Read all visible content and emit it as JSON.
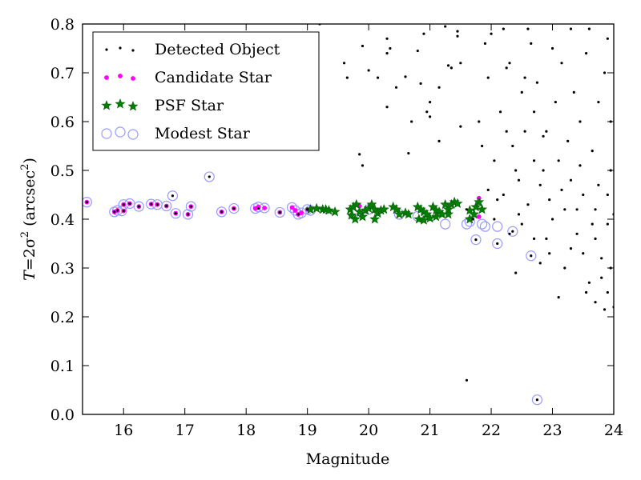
{
  "chart_data": {
    "type": "scatter",
    "title": "",
    "xlabel": "Magnitude",
    "ylabel_main": "T",
    "ylabel_eq": "=2σ",
    "ylabel_sup": "2",
    "ylabel_unit": "(arcsec",
    "ylabel_unit_sup": "2",
    "ylabel_close": ")",
    "xlim": [
      15.33,
      24
    ],
    "ylim": [
      0.0,
      0.8
    ],
    "xticks": [
      16,
      17,
      18,
      19,
      20,
      21,
      22,
      23,
      24
    ],
    "xtick_labels": [
      "16",
      "17",
      "18",
      "19",
      "20",
      "21",
      "22",
      "23",
      "24"
    ],
    "yticks": [
      0.0,
      0.1,
      0.2,
      0.3,
      0.4,
      0.5,
      0.6,
      0.7,
      0.8
    ],
    "ytick_labels": [
      "0.0",
      "0.1",
      "0.2",
      "0.3",
      "0.4",
      "0.5",
      "0.6",
      "0.7",
      "0.8"
    ],
    "grid": false,
    "legend_position": "top-left",
    "legend": [
      {
        "label": "Detected Object",
        "marker": "dot",
        "color": "#000000"
      },
      {
        "label": "Candidate Star",
        "marker": "small-circle",
        "color": "#ff00ff"
      },
      {
        "label": "PSF Star",
        "marker": "star",
        "color": "#008000"
      },
      {
        "label": "Modest Star",
        "marker": "open-circle",
        "color": "#9999ff"
      }
    ],
    "series": [
      {
        "name": "Modest Star",
        "color": "#9999ff",
        "points": [
          [
            15.4,
            0.435
          ],
          [
            15.85,
            0.415
          ],
          [
            15.9,
            0.418
          ],
          [
            15.97,
            0.417
          ],
          [
            16.0,
            0.43
          ],
          [
            16.1,
            0.432
          ],
          [
            16.25,
            0.426
          ],
          [
            16.45,
            0.431
          ],
          [
            16.55,
            0.43
          ],
          [
            16.7,
            0.427
          ],
          [
            16.8,
            0.448
          ],
          [
            16.85,
            0.412
          ],
          [
            17.05,
            0.41
          ],
          [
            17.1,
            0.426
          ],
          [
            17.4,
            0.487
          ],
          [
            17.6,
            0.415
          ],
          [
            17.8,
            0.422
          ],
          [
            18.15,
            0.422
          ],
          [
            18.2,
            0.425
          ],
          [
            18.3,
            0.423
          ],
          [
            18.55,
            0.414
          ],
          [
            18.75,
            0.424
          ],
          [
            18.8,
            0.418
          ],
          [
            18.85,
            0.41
          ],
          [
            18.9,
            0.413
          ],
          [
            19.0,
            0.42
          ],
          [
            19.05,
            0.418
          ],
          [
            19.75,
            0.41
          ],
          [
            20.0,
            0.42
          ],
          [
            20.5,
            0.41
          ],
          [
            20.8,
            0.406
          ],
          [
            21.25,
            0.39
          ],
          [
            21.6,
            0.39
          ],
          [
            21.65,
            0.395
          ],
          [
            21.75,
            0.358
          ],
          [
            21.85,
            0.39
          ],
          [
            21.9,
            0.385
          ],
          [
            22.1,
            0.385
          ],
          [
            22.1,
            0.35
          ],
          [
            22.35,
            0.375
          ],
          [
            22.65,
            0.325
          ],
          [
            22.75,
            0.03
          ]
        ]
      },
      {
        "name": "Candidate Star",
        "color": "#ff00ff",
        "points": [
          [
            15.4,
            0.435
          ],
          [
            15.85,
            0.415
          ],
          [
            15.9,
            0.418
          ],
          [
            16.0,
            0.417
          ],
          [
            16.0,
            0.43
          ],
          [
            16.1,
            0.432
          ],
          [
            16.25,
            0.426
          ],
          [
            16.45,
            0.431
          ],
          [
            16.55,
            0.43
          ],
          [
            16.7,
            0.427
          ],
          [
            16.85,
            0.412
          ],
          [
            17.05,
            0.41
          ],
          [
            17.1,
            0.426
          ],
          [
            17.6,
            0.415
          ],
          [
            17.8,
            0.422
          ],
          [
            18.15,
            0.422
          ],
          [
            18.2,
            0.425
          ],
          [
            18.3,
            0.423
          ],
          [
            18.55,
            0.414
          ],
          [
            18.75,
            0.424
          ],
          [
            18.8,
            0.418
          ],
          [
            18.85,
            0.41
          ],
          [
            18.9,
            0.413
          ],
          [
            19.0,
            0.42
          ],
          [
            19.85,
            0.427
          ],
          [
            20.05,
            0.43
          ],
          [
            21.8,
            0.443
          ],
          [
            21.8,
            0.405
          ]
        ]
      },
      {
        "name": "PSF Star",
        "color": "#008000",
        "points": [
          [
            19.05,
            0.42
          ],
          [
            19.15,
            0.422
          ],
          [
            19.25,
            0.42
          ],
          [
            19.3,
            0.42
          ],
          [
            19.35,
            0.418
          ],
          [
            19.45,
            0.415
          ],
          [
            19.7,
            0.42
          ],
          [
            19.75,
            0.425
          ],
          [
            19.8,
            0.43
          ],
          [
            19.72,
            0.408
          ],
          [
            19.78,
            0.4
          ],
          [
            19.85,
            0.415
          ],
          [
            19.9,
            0.405
          ],
          [
            19.95,
            0.418
          ],
          [
            20.0,
            0.422
          ],
          [
            20.05,
            0.43
          ],
          [
            20.1,
            0.42
          ],
          [
            20.15,
            0.412
          ],
          [
            20.2,
            0.418
          ],
          [
            20.25,
            0.42
          ],
          [
            20.1,
            0.4
          ],
          [
            20.4,
            0.425
          ],
          [
            20.45,
            0.42
          ],
          [
            20.5,
            0.41
          ],
          [
            20.6,
            0.413
          ],
          [
            20.65,
            0.41
          ],
          [
            20.8,
            0.425
          ],
          [
            20.85,
            0.42
          ],
          [
            20.9,
            0.415
          ],
          [
            20.95,
            0.41
          ],
          [
            20.82,
            0.4
          ],
          [
            20.9,
            0.398
          ],
          [
            21.05,
            0.425
          ],
          [
            21.1,
            0.418
          ],
          [
            21.15,
            0.415
          ],
          [
            21.1,
            0.405
          ],
          [
            21.0,
            0.402
          ],
          [
            21.25,
            0.43
          ],
          [
            21.3,
            0.42
          ],
          [
            21.35,
            0.43
          ],
          [
            21.4,
            0.435
          ],
          [
            21.45,
            0.432
          ],
          [
            21.3,
            0.41
          ],
          [
            21.2,
            0.41
          ],
          [
            21.65,
            0.418
          ],
          [
            21.75,
            0.425
          ],
          [
            21.8,
            0.435
          ],
          [
            21.72,
            0.41
          ],
          [
            21.65,
            0.4
          ],
          [
            21.85,
            0.42
          ]
        ]
      },
      {
        "name": "Detected Object",
        "color": "#000000",
        "points": [
          [
            15.4,
            0.435
          ],
          [
            15.85,
            0.415
          ],
          [
            15.9,
            0.418
          ],
          [
            16.0,
            0.417
          ],
          [
            16.0,
            0.43
          ],
          [
            16.1,
            0.432
          ],
          [
            16.25,
            0.426
          ],
          [
            16.45,
            0.431
          ],
          [
            16.55,
            0.43
          ],
          [
            16.7,
            0.427
          ],
          [
            16.8,
            0.448
          ],
          [
            16.85,
            0.412
          ],
          [
            17.05,
            0.41
          ],
          [
            17.1,
            0.426
          ],
          [
            17.4,
            0.487
          ],
          [
            17.6,
            0.415
          ],
          [
            17.8,
            0.422
          ],
          [
            18.2,
            0.422
          ],
          [
            18.55,
            0.414
          ],
          [
            18.85,
            0.41
          ],
          [
            19.0,
            0.42
          ],
          [
            19.2,
            0.8
          ],
          [
            19.6,
            0.72
          ],
          [
            19.65,
            0.69
          ],
          [
            19.85,
            0.533
          ],
          [
            19.9,
            0.51
          ],
          [
            19.9,
            0.755
          ],
          [
            20.0,
            0.705
          ],
          [
            20.15,
            0.69
          ],
          [
            20.3,
            0.74
          ],
          [
            20.3,
            0.77
          ],
          [
            20.35,
            0.75
          ],
          [
            20.6,
            0.692
          ],
          [
            20.65,
            0.535
          ],
          [
            20.8,
            0.745
          ],
          [
            20.85,
            0.678
          ],
          [
            20.9,
            0.78
          ],
          [
            20.95,
            0.62
          ],
          [
            21.0,
            0.61
          ],
          [
            21.0,
            0.64
          ],
          [
            21.15,
            0.67
          ],
          [
            21.15,
            0.56
          ],
          [
            21.25,
            0.795
          ],
          [
            21.3,
            0.715
          ],
          [
            21.35,
            0.71
          ],
          [
            21.45,
            0.775
          ],
          [
            21.45,
            0.785
          ],
          [
            21.5,
            0.72
          ],
          [
            21.5,
            0.59
          ],
          [
            20.45,
            0.67
          ],
          [
            20.7,
            0.6
          ],
          [
            20.3,
            0.63
          ],
          [
            21.6,
            0.07
          ],
          [
            21.6,
            0.42
          ],
          [
            21.7,
            0.4
          ],
          [
            22.4,
            0.29
          ],
          [
            21.8,
            0.6
          ],
          [
            22.0,
            0.78
          ],
          [
            22.3,
            0.72
          ],
          [
            22.5,
            0.66
          ],
          [
            22.7,
            0.62
          ],
          [
            22.9,
            0.58
          ],
          [
            23.1,
            0.52
          ],
          [
            23.3,
            0.48
          ],
          [
            23.5,
            0.45
          ],
          [
            23.7,
            0.42
          ],
          [
            23.9,
            0.39
          ],
          [
            22.2,
            0.45
          ],
          [
            22.6,
            0.43
          ],
          [
            23.0,
            0.4
          ],
          [
            23.4,
            0.37
          ],
          [
            23.8,
            0.32
          ],
          [
            23.9,
            0.25
          ],
          [
            24.0,
            0.22
          ],
          [
            23.95,
            0.3
          ],
          [
            23.6,
            0.27
          ],
          [
            23.3,
            0.34
          ],
          [
            22.9,
            0.36
          ],
          [
            22.5,
            0.39
          ],
          [
            22.8,
            0.31
          ],
          [
            23.1,
            0.24
          ],
          [
            23.2,
            0.3
          ],
          [
            23.55,
            0.25
          ],
          [
            23.85,
            0.215
          ],
          [
            22.05,
            0.52
          ],
          [
            22.15,
            0.62
          ],
          [
            22.25,
            0.71
          ],
          [
            22.35,
            0.55
          ],
          [
            22.45,
            0.48
          ],
          [
            22.55,
            0.58
          ],
          [
            22.65,
            0.76
          ],
          [
            22.75,
            0.68
          ],
          [
            22.85,
            0.5
          ],
          [
            22.95,
            0.44
          ],
          [
            23.05,
            0.64
          ],
          [
            23.15,
            0.72
          ],
          [
            23.25,
            0.56
          ],
          [
            23.35,
            0.66
          ],
          [
            23.45,
            0.6
          ],
          [
            23.55,
            0.74
          ],
          [
            23.65,
            0.54
          ],
          [
            23.75,
            0.64
          ],
          [
            23.85,
            0.7
          ],
          [
            23.95,
            0.6
          ],
          [
            23.95,
            0.5
          ],
          [
            23.75,
            0.47
          ],
          [
            23.45,
            0.51
          ],
          [
            23.15,
            0.46
          ],
          [
            22.85,
            0.57
          ],
          [
            22.55,
            0.69
          ],
          [
            22.25,
            0.58
          ],
          [
            21.95,
            0.69
          ],
          [
            21.85,
            0.55
          ],
          [
            22.1,
            0.44
          ],
          [
            22.4,
            0.5
          ],
          [
            22.7,
            0.52
          ],
          [
            23.0,
            0.75
          ],
          [
            23.3,
            0.79
          ],
          [
            23.6,
            0.79
          ],
          [
            23.9,
            0.77
          ],
          [
            22.2,
            0.79
          ],
          [
            22.6,
            0.79
          ],
          [
            21.9,
            0.76
          ],
          [
            23.7,
            0.36
          ],
          [
            23.5,
            0.33
          ],
          [
            23.9,
            0.45
          ],
          [
            24.0,
            0.41
          ],
          [
            23.2,
            0.42
          ],
          [
            22.95,
            0.33
          ],
          [
            22.7,
            0.36
          ],
          [
            22.45,
            0.41
          ],
          [
            22.3,
            0.37
          ],
          [
            22.05,
            0.4
          ],
          [
            21.95,
            0.46
          ],
          [
            22.8,
            0.47
          ],
          [
            23.4,
            0.42
          ],
          [
            23.65,
            0.39
          ],
          [
            23.8,
            0.28
          ],
          [
            23.7,
            0.23
          ],
          [
            22.65,
            0.325
          ],
          [
            22.75,
            0.03
          ],
          [
            22.1,
            0.35
          ],
          [
            21.75,
            0.358
          ],
          [
            22.35,
            0.375
          ]
        ]
      }
    ]
  }
}
